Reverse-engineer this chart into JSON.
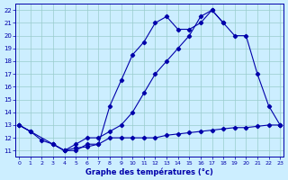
{
  "title": "Graphe des températures (°c)",
  "bg_color": "#cceeff",
  "line_color": "#0000aa",
  "grid_color": "#99cccc",
  "xlim": [
    -0.3,
    23.3
  ],
  "ylim": [
    10.5,
    22.5
  ],
  "xticks": [
    0,
    1,
    2,
    3,
    4,
    5,
    6,
    7,
    8,
    9,
    10,
    11,
    12,
    13,
    14,
    15,
    16,
    17,
    18,
    19,
    20,
    21,
    22,
    23
  ],
  "yticks": [
    11,
    12,
    13,
    14,
    15,
    16,
    17,
    18,
    19,
    20,
    21,
    22
  ],
  "series": [
    {
      "x": [
        0,
        1,
        2,
        3,
        4,
        5,
        6,
        7,
        8,
        9,
        10,
        11,
        12,
        13,
        14,
        15,
        16,
        17,
        18,
        19,
        20,
        21,
        22,
        23
      ],
      "y": [
        13,
        12.5,
        null,
        11.5,
        11,
        11,
        11.5,
        11.5,
        14.5,
        16.5,
        18.5,
        19.5,
        21,
        21.5,
        20.5,
        20.5,
        21,
        22,
        21,
        null,
        null,
        null,
        null,
        13
      ]
    },
    {
      "x": [
        0,
        3,
        4,
        5,
        6,
        7,
        8,
        9,
        10,
        11,
        12,
        13,
        14,
        15,
        16,
        17,
        18,
        19,
        20,
        21,
        22,
        23
      ],
      "y": [
        13,
        11.5,
        11,
        11.5,
        12,
        12,
        12.5,
        13,
        14,
        15.5,
        17,
        18,
        19,
        20,
        21.5,
        22,
        21,
        20,
        20,
        17,
        14.5,
        13
      ]
    },
    {
      "x": [
        0,
        1,
        2,
        3,
        4,
        5,
        6,
        7,
        8,
        9,
        10,
        11,
        12,
        13,
        14,
        15,
        16,
        17,
        18,
        19,
        20,
        21,
        22,
        23
      ],
      "y": [
        13,
        12.5,
        11.8,
        11.5,
        11,
        11.2,
        11.3,
        11.5,
        12,
        12,
        12,
        12,
        12,
        12.2,
        12.3,
        12.4,
        12.5,
        12.6,
        12.7,
        12.8,
        12.8,
        12.9,
        13,
        13
      ]
    }
  ]
}
